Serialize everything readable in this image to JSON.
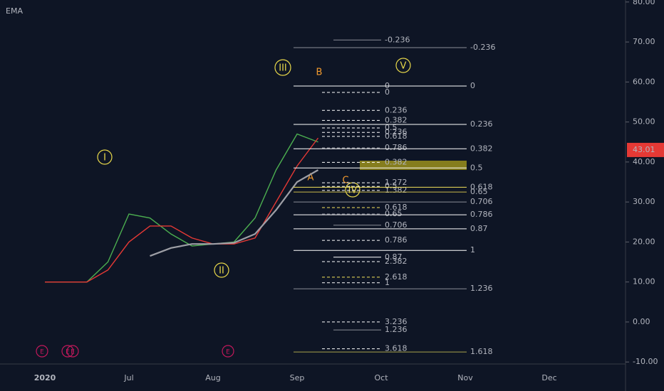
{
  "chart_data": {
    "type": "line",
    "indicator_label": "EMA",
    "categories": [
      "2020",
      null,
      null,
      null,
      "Jul",
      null,
      null,
      null,
      "Aug",
      null,
      null,
      null,
      "Sep",
      null,
      null,
      null,
      "Oct",
      null,
      null,
      null,
      "Nov",
      null,
      null,
      null,
      "Dec",
      null,
      null,
      null
    ],
    "series": [
      {
        "color": "#4caf50",
        "values": [
          10,
          10,
          10,
          15,
          27,
          26,
          22,
          19,
          19.5,
          20,
          26,
          38,
          47,
          45,
          null,
          null,
          null,
          null,
          null,
          null,
          null,
          null,
          null,
          null,
          null,
          null,
          null,
          null
        ]
      },
      {
        "color": "#e53935",
        "values": [
          10,
          10,
          10,
          13,
          20,
          24,
          24,
          21,
          19.5,
          19.5,
          21,
          30,
          39,
          46,
          null,
          null,
          null,
          null,
          null,
          null,
          null,
          null,
          null,
          null,
          null,
          null,
          null,
          null
        ]
      },
      {
        "color": "#9e9fa6",
        "values": [
          null,
          null,
          null,
          null,
          null,
          16.5,
          18.5,
          19.5,
          19.5,
          19.8,
          22,
          28,
          35,
          38,
          null,
          null,
          null,
          null,
          null,
          null,
          null,
          null,
          null,
          null,
          null,
          null,
          null,
          null
        ]
      }
    ],
    "ylim": [
      -10.5,
      80.5
    ],
    "yticks": [
      {
        "value": 80,
        "label": "80.00"
      },
      {
        "value": 70,
        "label": "70.00"
      },
      {
        "value": 60,
        "label": "60.00"
      },
      {
        "value": 50,
        "label": "50.00"
      },
      {
        "value": 40,
        "label": "40.00"
      },
      {
        "value": 30,
        "label": "30.00"
      },
      {
        "value": 20,
        "label": "20.00"
      },
      {
        "value": 10,
        "label": "10.00"
      },
      {
        "value": 0,
        "label": "0.00"
      },
      {
        "value": -10,
        "label": "-10.00"
      }
    ],
    "last_price": 43.01,
    "last_price_color": "#e53935",
    "left_levels": [
      {
        "ratio": "-0.236",
        "price": 70.5,
        "color": "#8a8d96",
        "dashed": false
      },
      {
        "ratio": "0",
        "price": 59.0,
        "color": "#ffffff",
        "dashed": false
      },
      {
        "ratio": "0",
        "price": 57.4,
        "color": "#ffffff",
        "dashed": true
      },
      {
        "ratio": "0.236",
        "price": 52.9,
        "color": "#ffffff",
        "dashed": true
      },
      {
        "ratio": "0.382",
        "price": 50.4,
        "color": "#ffffff",
        "dashed": true
      },
      {
        "ratio": "0.5",
        "price": 48.5,
        "color": "#ffffff",
        "dashed": true
      },
      {
        "ratio": "0.236",
        "price": 47.4,
        "color": "#ffffff",
        "dashed": true
      },
      {
        "ratio": "0.618",
        "price": 46.4,
        "color": "#ffffff",
        "dashed": true
      },
      {
        "ratio": "0.786",
        "price": 43.5,
        "color": "#b2b5be",
        "dashed": true
      },
      {
        "ratio": "0.382",
        "price": 39.9,
        "color": "#ffffff",
        "dashed": true
      },
      {
        "ratio": "1.272",
        "price": 34.8,
        "color": "#ffffff",
        "dashed": true
      },
      {
        "ratio": "0.5",
        "price": 33.9,
        "color": "#ffffff",
        "dashed": true
      },
      {
        "ratio": "1.382",
        "price": 32.9,
        "color": "#ffffff",
        "dashed": true
      },
      {
        "ratio": "0.618",
        "price": 28.6,
        "color": "#f5e35a",
        "dashed": true
      },
      {
        "ratio": "0.65",
        "price": 27.0,
        "color": "#8a8d96",
        "dashed": true
      },
      {
        "ratio": "0.706",
        "price": 24.2,
        "color": "#8a8d96",
        "dashed": false
      },
      {
        "ratio": "0.786",
        "price": 20.4,
        "color": "#ffffff",
        "dashed": true
      },
      {
        "ratio": "0.87",
        "price": 16.2,
        "color": "#ffffff",
        "dashed": false
      },
      {
        "ratio": "2.382",
        "price": 15.1,
        "color": "#ffffff",
        "dashed": true
      },
      {
        "ratio": "2.618",
        "price": 11.2,
        "color": "#f5e35a",
        "dashed": true
      },
      {
        "ratio": "1",
        "price": 9.8,
        "color": "#ffffff",
        "dashed": true
      },
      {
        "ratio": "3.236",
        "price": 0,
        "color": "#ffffff",
        "dashed": true
      },
      {
        "ratio": "1.236",
        "price": -2.0,
        "color": "#8a8d96",
        "dashed": false
      },
      {
        "ratio": "3.618",
        "price": -6.7,
        "color": "#ffffff",
        "dashed": true
      }
    ],
    "right_levels": [
      {
        "ratio": "-0.236",
        "price": 68.6,
        "color": "#8a8d96"
      },
      {
        "ratio": "0",
        "price": 59.0,
        "color": "#ffffff"
      },
      {
        "ratio": "0.236",
        "price": 49.4,
        "color": "#ffffff"
      },
      {
        "ratio": "0.382",
        "price": 43.3,
        "color": "#ffffff"
      },
      {
        "ratio": "0.5",
        "price": 38.5,
        "color": "#ffffff"
      },
      {
        "ratio": "0.618",
        "price": 33.7,
        "color": "#f5e35a"
      },
      {
        "ratio": "0.65",
        "price": 32.5,
        "color": "#c9b94a"
      },
      {
        "ratio": "0.706",
        "price": 30.0,
        "color": "#8a8d96"
      },
      {
        "ratio": "0.786",
        "price": 26.8,
        "color": "#ffffff"
      },
      {
        "ratio": "0.87",
        "price": 23.3,
        "color": "#ffffff"
      },
      {
        "ratio": "1",
        "price": 17.9,
        "color": "#ffffff"
      },
      {
        "ratio": "1.236",
        "price": 8.3,
        "color": "#8a8d96"
      },
      {
        "ratio": "1.618",
        "price": -7.5,
        "color": "#a9a24a"
      }
    ],
    "waves": [
      "I",
      "II",
      "III",
      "IV",
      "V"
    ],
    "corrections": [
      "A",
      "B",
      "C"
    ],
    "earnings": [
      "E",
      "E",
      "E",
      "E"
    ]
  }
}
